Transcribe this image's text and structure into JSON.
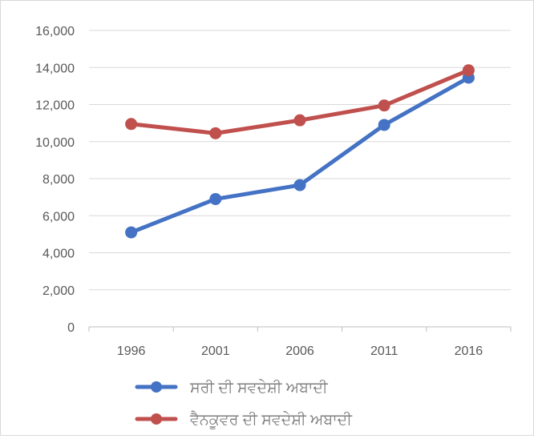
{
  "chart_data": {
    "type": "line",
    "title": "",
    "xlabel": "",
    "ylabel": "",
    "categories": [
      "1996",
      "2001",
      "2006",
      "2011",
      "2016"
    ],
    "ylim": [
      0,
      16000
    ],
    "yticks": [
      "0",
      "2,000",
      "4,000",
      "6,000",
      "8,000",
      "10,000",
      "12,000",
      "14,000",
      "16,000"
    ],
    "grid": true,
    "legend_position": "bottom",
    "series": [
      {
        "name": "ਸਰੀ ਦੀ ਸਵਦੇਸ਼ੀ ਅਬਾਦੀ",
        "color": "#4472c4",
        "values": [
          5100,
          6900,
          7650,
          10900,
          13450
        ]
      },
      {
        "name": "ਵੈਨਕੂਵਰ ਦੀ ਸਵਦੇਸ਼ੀ ਅਬਾਦੀ",
        "color": "#c0504d",
        "values": [
          10950,
          10450,
          11150,
          11950,
          13850
        ]
      }
    ]
  }
}
